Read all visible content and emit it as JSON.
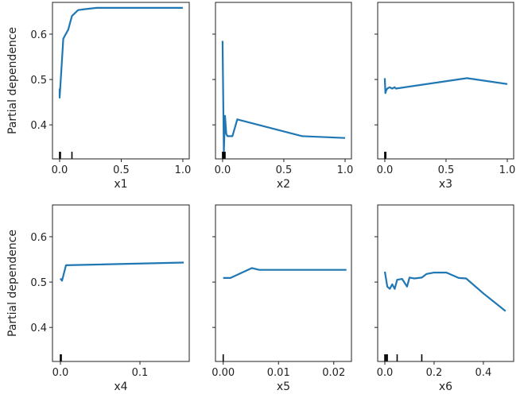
{
  "chart_data": [
    {
      "type": "line",
      "xlabel": "x1",
      "ylabel": "Partial dependence",
      "ylim": [
        0.325,
        0.67
      ],
      "xlim": [
        -0.058,
        1.052
      ],
      "xticks": [
        0.0,
        0.5,
        1.0
      ],
      "xtick_labels": [
        "0.0",
        "0.5",
        "1.0"
      ],
      "yticks": [
        0.4,
        0.5,
        0.6
      ],
      "ytick_labels": [
        "0.4",
        "0.5",
        "0.6"
      ],
      "x": [
        0,
        0,
        0.03,
        0.07,
        0.1,
        0.15,
        0.2,
        0.3,
        1.0
      ],
      "y": [
        0.48,
        0.46,
        0.59,
        0.61,
        0.64,
        0.653,
        0.655,
        0.658,
        0.658
      ],
      "deciles": [
        0,
        0.003,
        0.006,
        0.1
      ]
    },
    {
      "type": "line",
      "xlabel": "x2",
      "ylabel": "",
      "ylim": [
        0.325,
        0.67
      ],
      "xlim": [
        -0.058,
        1.052
      ],
      "xticks": [
        0.0,
        0.5,
        1.0
      ],
      "xtick_labels": [
        "0.0",
        "0.5",
        "1.0"
      ],
      "yticks": [
        0.4,
        0.5,
        0.6
      ],
      "ytick_labels": [],
      "x": [
        0,
        0.01,
        0.02,
        0.03,
        0.04,
        0.08,
        0.12,
        0.65,
        1.0
      ],
      "y": [
        0.585,
        0.34,
        0.42,
        0.38,
        0.375,
        0.375,
        0.412,
        0.375,
        0.371
      ],
      "deciles": [
        0,
        0.005,
        0.01,
        0.015,
        0.02
      ]
    },
    {
      "type": "line",
      "xlabel": "x3",
      "ylabel": "",
      "ylim": [
        0.325,
        0.67
      ],
      "xlim": [
        -0.058,
        1.052
      ],
      "xticks": [
        0.0,
        0.5,
        1.0
      ],
      "xtick_labels": [
        "0.0",
        "0.5",
        "1.0"
      ],
      "yticks": [
        0.4,
        0.5,
        0.6
      ],
      "ytick_labels": [],
      "x": [
        0,
        0.005,
        0.01,
        0.02,
        0.04,
        0.06,
        0.08,
        0.09,
        0.67,
        1.0
      ],
      "y": [
        0.503,
        0.47,
        0.475,
        0.48,
        0.483,
        0.48,
        0.483,
        0.48,
        0.503,
        0.49
      ],
      "deciles": [
        0,
        0.004,
        0.008
      ]
    },
    {
      "type": "line",
      "xlabel": "x4",
      "ylabel": "Partial dependence",
      "ylim": [
        0.325,
        0.67
      ],
      "xlim": [
        -0.01,
        0.162
      ],
      "xticks": [
        0.0,
        0.1
      ],
      "xtick_labels": [
        "0.0",
        "0.1"
      ],
      "yticks": [
        0.4,
        0.5,
        0.6
      ],
      "ytick_labels": [
        "0.4",
        "0.5",
        "0.6"
      ],
      "x": [
        0,
        0.002,
        0.007,
        0.155
      ],
      "y": [
        0.508,
        0.503,
        0.537,
        0.543
      ],
      "deciles": [
        0,
        0.001
      ]
    },
    {
      "type": "line",
      "xlabel": "x5",
      "ylabel": "",
      "ylim": [
        0.325,
        0.67
      ],
      "xlim": [
        -0.0014,
        0.0232
      ],
      "xticks": [
        0.0,
        0.01,
        0.02
      ],
      "xtick_labels": [
        "0.00",
        "0.01",
        "0.02"
      ],
      "yticks": [
        0.4,
        0.5,
        0.6
      ],
      "ytick_labels": [],
      "x": [
        0,
        0.0013,
        0.0052,
        0.0065,
        0.0223
      ],
      "y": [
        0.509,
        0.509,
        0.531,
        0.527,
        0.527
      ],
      "deciles": [
        0
      ]
    },
    {
      "type": "line",
      "xlabel": "x6",
      "ylabel": "",
      "ylim": [
        0.325,
        0.67
      ],
      "xlim": [
        -0.029,
        0.523
      ],
      "xticks": [
        0.0,
        0.2,
        0.4
      ],
      "xtick_labels": [
        "0.0",
        "0.2",
        "0.4"
      ],
      "yticks": [
        0.4,
        0.5,
        0.6
      ],
      "ytick_labels": [],
      "x": [
        0,
        0.01,
        0.02,
        0.03,
        0.04,
        0.05,
        0.07,
        0.09,
        0.1,
        0.12,
        0.15,
        0.17,
        0.2,
        0.25,
        0.3,
        0.33,
        0.4,
        0.49
      ],
      "y": [
        0.523,
        0.49,
        0.485,
        0.495,
        0.485,
        0.505,
        0.507,
        0.49,
        0.51,
        0.508,
        0.51,
        0.518,
        0.521,
        0.521,
        0.509,
        0.508,
        0.475,
        0.436
      ],
      "deciles": [
        0,
        0.005,
        0.01,
        0.05,
        0.15
      ]
    }
  ],
  "colors": {
    "line": "#1f77b4",
    "axes": "#222222"
  }
}
